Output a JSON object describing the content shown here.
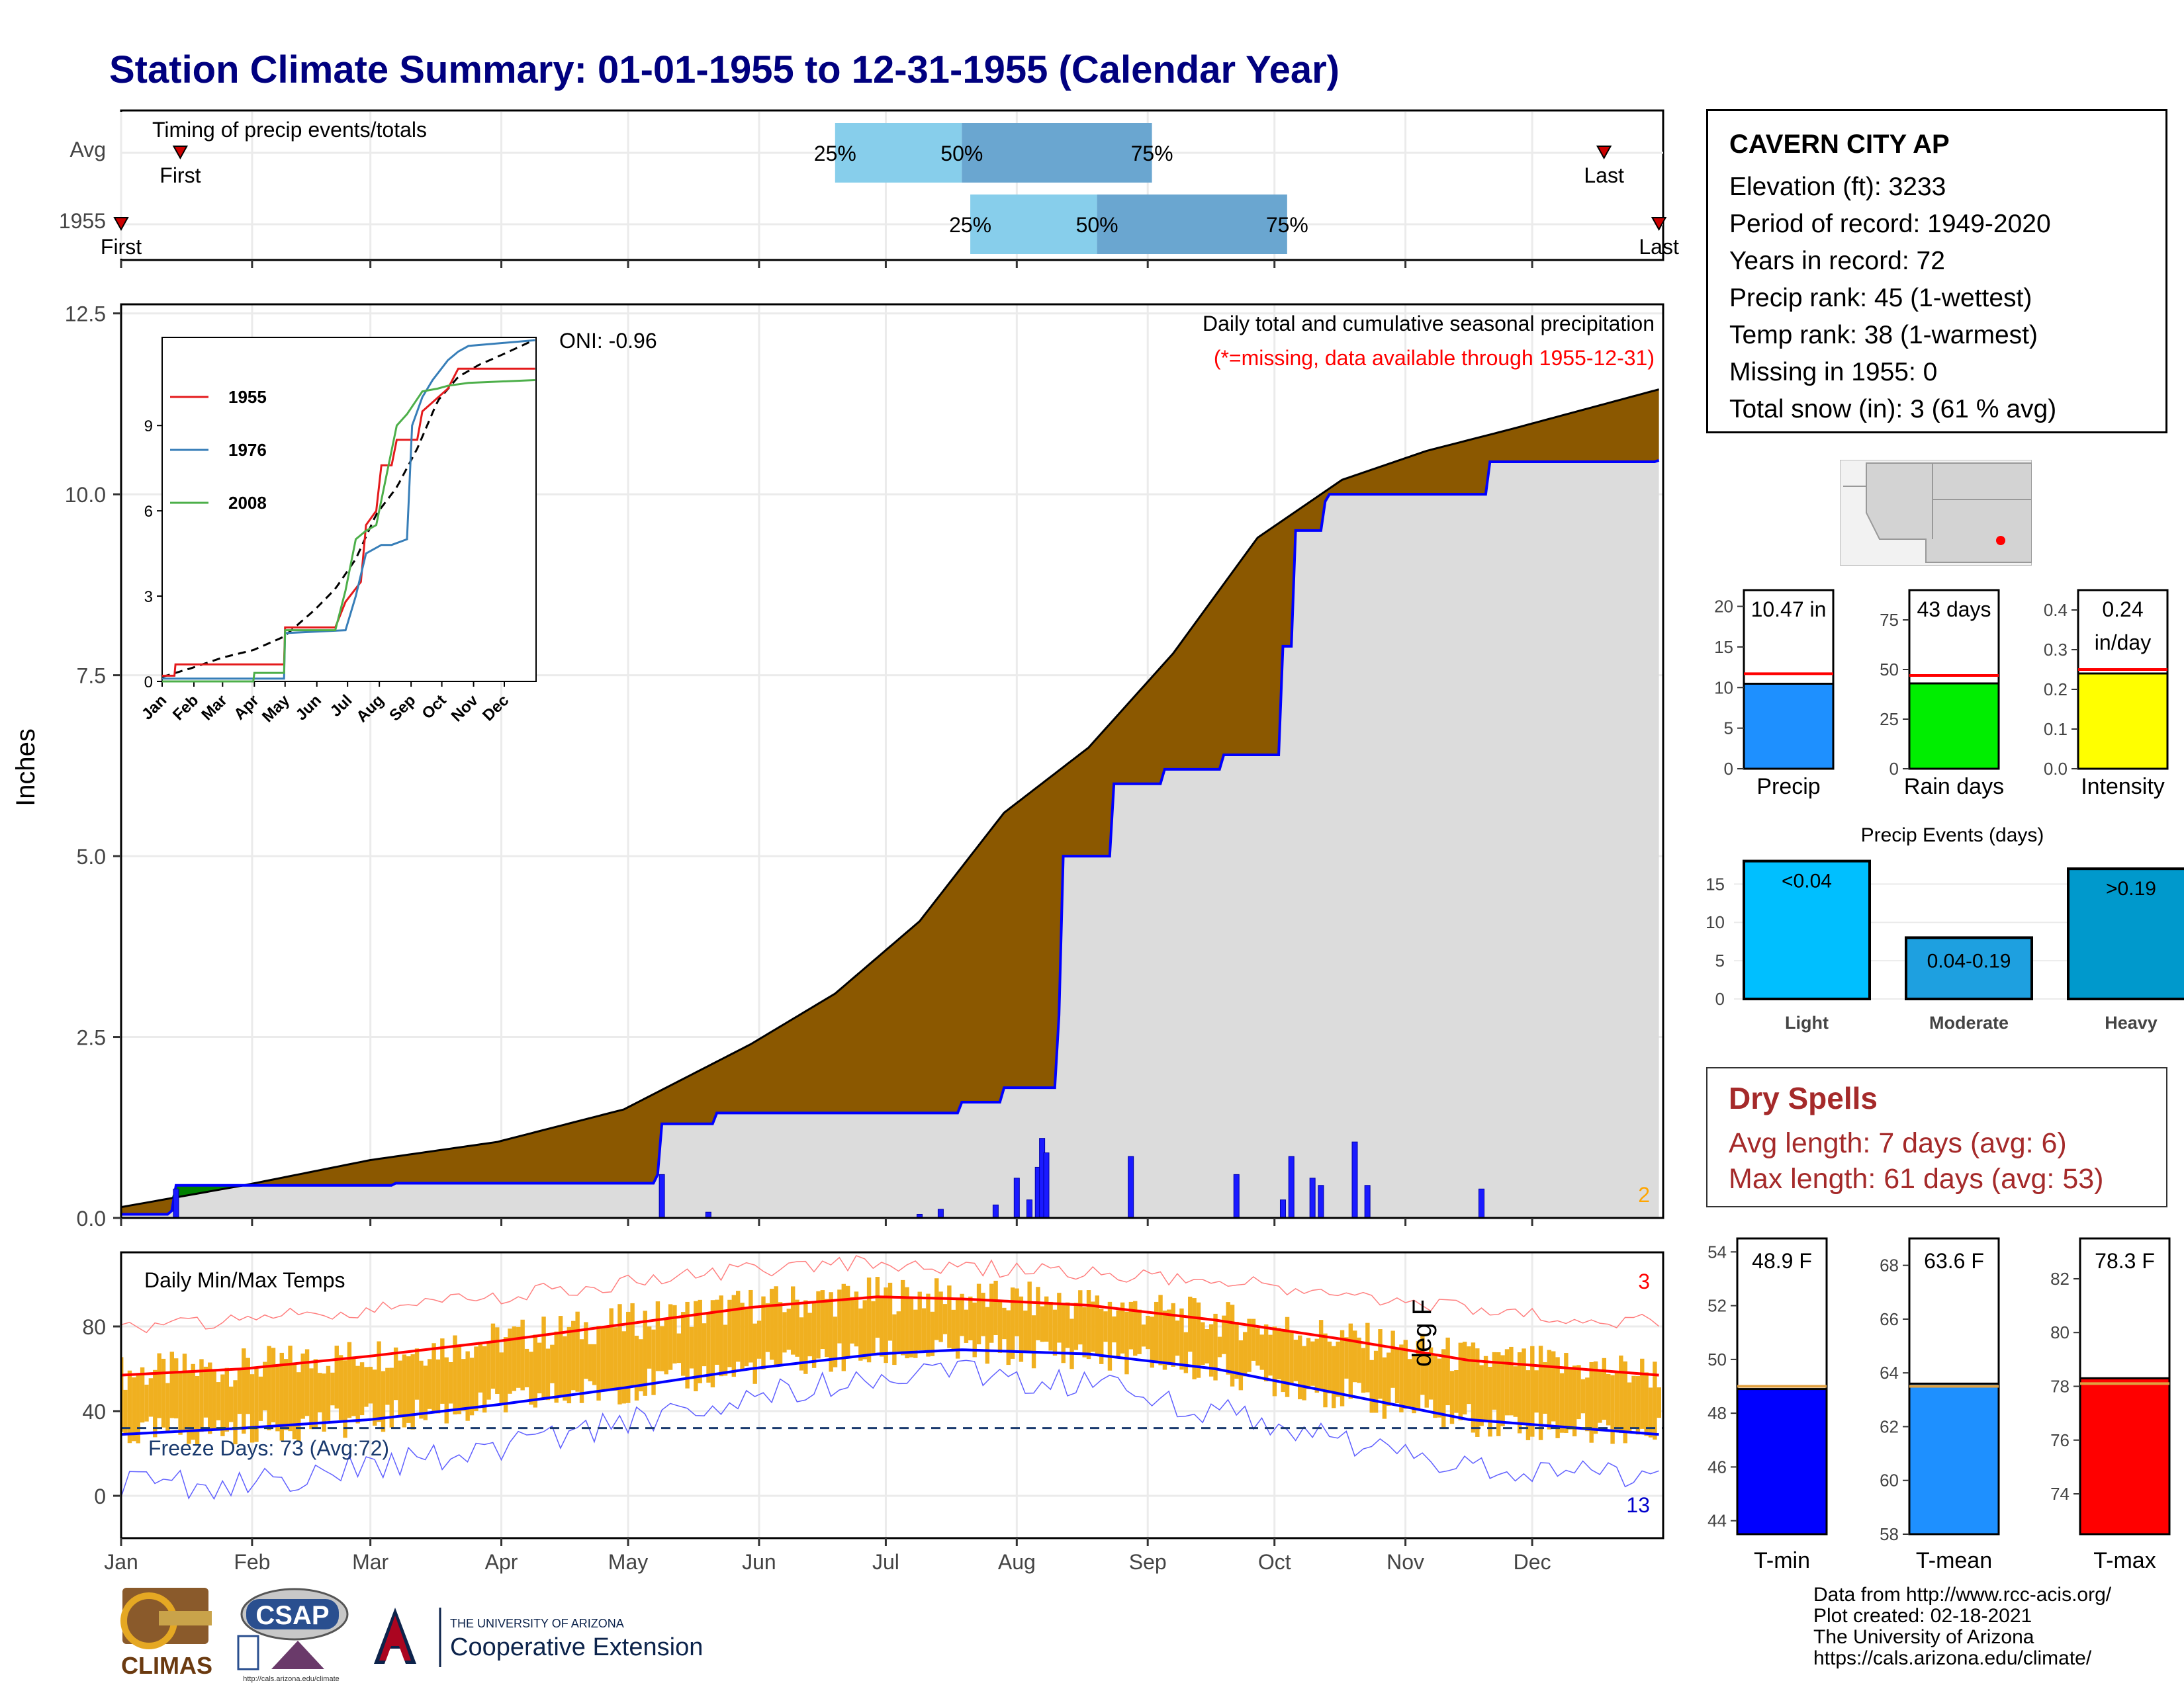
{
  "title": "Station Climate Summary: 01-01-1955 to 12-31-1955 (Calendar Year)",
  "colors": {
    "title": "#00007f",
    "q_light": "#87ceeb",
    "q_dark": "#6aa6d0",
    "deficit": "#8b5800",
    "surplus": "#008000",
    "normal_fill": "#dcdcdc",
    "obs_line": "#0000ff",
    "tmax": "#ff0000",
    "tmin": "#0000ff",
    "temp_bar": "#f0b020",
    "dryspell": "#a52a2a"
  },
  "timing": {
    "label": "Timing of precip events/totals",
    "rows": [
      "Avg",
      "1955"
    ],
    "avg": {
      "first_label": "First",
      "last_label": "Last",
      "p25": "25%",
      "p50": "50%",
      "p75": "75%",
      "first_day": 15,
      "last_day": 352,
      "q25": 170,
      "q50": 200,
      "q75": 245
    },
    "year": {
      "first_label": "First",
      "last_label": "Last",
      "p25": "25%",
      "p50": "50%",
      "p75": "75%",
      "first_day": 1,
      "last_day": 365,
      "q25": 202,
      "q50": 232,
      "q75": 277
    }
  },
  "precip_panel": {
    "ylabel": "Inches",
    "yticks": [
      "0.0",
      "2.5",
      "5.0",
      "7.5",
      "10.0",
      "12.5"
    ],
    "ylim": [
      0,
      12.6
    ],
    "annotation": "Daily total and cumulative seasonal precipitation",
    "missing_note": "(*=missing, data available through 1955-12-31)",
    "oni": "ONI: -0.96",
    "missing_count": "2"
  },
  "inset": {
    "yticks": [
      "0",
      "3",
      "6",
      "9"
    ],
    "xticks": [
      "Jan",
      "Feb",
      "Mar",
      "Apr",
      "May",
      "Jun",
      "Jul",
      "Aug",
      "Sep",
      "Oct",
      "Nov",
      "Dec"
    ],
    "legend": [
      {
        "name": "1955",
        "color": "#e41a1c"
      },
      {
        "name": "1976",
        "color": "#377eb8"
      },
      {
        "name": "2008",
        "color": "#4daf4a"
      }
    ]
  },
  "temp_panel": {
    "ylabel": "deg F",
    "label": "Daily Min/Max Temps",
    "yticks": [
      "0",
      "40",
      "80"
    ],
    "ylim": [
      -20,
      115
    ],
    "freeze": "Freeze Days: 73 (Avg:72)",
    "max_count": "3",
    "min_count": "13"
  },
  "months": [
    "Jan",
    "Feb",
    "Mar",
    "Apr",
    "May",
    "Jun",
    "Jul",
    "Aug",
    "Sep",
    "Oct",
    "Nov",
    "Dec"
  ],
  "station": {
    "name": "CAVERN CITY AP",
    "lines": [
      "Elevation (ft): 3233",
      "Period of record: 1949-2020",
      "Years in record: 72",
      "Precip rank: 45 (1-wettest)",
      "Temp rank: 38 (1-warmest)",
      "Missing in 1955: 0",
      "Total snow (in): 3 (61 % avg)"
    ]
  },
  "bar_precip": {
    "label": "10.47 in",
    "xlabel": "Precip",
    "value": 10.47,
    "avg": 11.7,
    "yticks": [
      "0",
      "5",
      "10",
      "15",
      "20"
    ],
    "ymax": 22
  },
  "bar_raindays": {
    "label": "43 days",
    "xlabel": "Rain days",
    "value": 43,
    "avg": 47,
    "yticks": [
      "0",
      "25",
      "50",
      "75"
    ],
    "ymax": 90
  },
  "bar_intensity": {
    "label1": "0.24",
    "label2": "in/day",
    "xlabel": "Intensity",
    "value": 0.24,
    "avg": 0.25,
    "yticks": [
      "0.0",
      "0.1",
      "0.2",
      "0.3",
      "0.4"
    ],
    "ymax": 0.45
  },
  "precip_events": {
    "title": "Precip Events (days)",
    "yticks": [
      "0",
      "5",
      "10",
      "15"
    ],
    "ymax": 19,
    "categories": [
      "Light",
      "Moderate",
      "Heavy"
    ],
    "labels": [
      "<0.04",
      "0.04-0.19",
      ">0.19"
    ],
    "values": [
      18,
      8,
      17
    ],
    "colors": [
      "#00bfff",
      "#1ea0e0",
      "#0099cc"
    ]
  },
  "dry_spells": {
    "title": "Dry Spells",
    "avg": "Avg length: 7 days (avg: 6)",
    "max": "Max length: 61 days (avg: 53)"
  },
  "tmin_bar": {
    "label": "48.9 F",
    "xlabel": "T-min",
    "value": 48.9,
    "avg": 49.0,
    "yticks": [
      "44",
      "46",
      "48",
      "50",
      "52",
      "54"
    ],
    "ylim": [
      43.5,
      54.5
    ],
    "color": "#0000ff"
  },
  "tmean_bar": {
    "label": "63.6 F",
    "xlabel": "T-mean",
    "value": 63.6,
    "avg": 63.5,
    "yticks": [
      "58",
      "60",
      "62",
      "64",
      "66",
      "68"
    ],
    "ylim": [
      58,
      69
    ],
    "color": "#1e90ff"
  },
  "tmax_bar": {
    "label": "78.3 F",
    "xlabel": "T-max",
    "value": 78.3,
    "avg": 78.1,
    "yticks": [
      "74",
      "76",
      "78",
      "80",
      "82"
    ],
    "ylim": [
      72.5,
      83.5
    ],
    "color": "#ff0000"
  },
  "footer": [
    "Data from http://www.rcc-acis.org/",
    "Plot created: 02-18-2021",
    "The University of Arizona",
    "https://cals.arizona.edu/climate/"
  ],
  "logos": {
    "climas": "CLIMAS",
    "csap": "CSAP",
    "csap_url": "http://cals.arizona.edu/climate",
    "ua_top": "THE UNIVERSITY OF ARIZONA",
    "ua_bottom": "Cooperative Extension"
  },
  "chart_data": [
    {
      "type": "area",
      "title": "Daily total and cumulative seasonal precipitation",
      "ylabel": "Inches",
      "x_unit": "day of year",
      "ylim": [
        0,
        12.6
      ],
      "series": [
        {
          "name": "normal cumulative",
          "x": [
            1,
            30,
            60,
            90,
            120,
            150,
            170,
            190,
            210,
            230,
            250,
            270,
            290,
            310,
            330,
            365
          ],
          "values": [
            0.15,
            0.45,
            0.8,
            1.05,
            1.5,
            2.4,
            3.1,
            4.1,
            5.6,
            6.5,
            7.8,
            9.4,
            10.2,
            10.6,
            10.9,
            11.45
          ]
        },
        {
          "name": "observed cumulative",
          "x": [
            1,
            13,
            14,
            65,
            66,
            128,
            129,
            142,
            200,
            210,
            223,
            224,
            236,
            248,
            262,
            276,
            279,
            286,
            287,
            324,
            325,
            365
          ],
          "values": [
            0.05,
            0.1,
            0.45,
            0.45,
            0.48,
            0.6,
            1.3,
            1.45,
            1.6,
            1.8,
            2.8,
            5.0,
            6.0,
            6.2,
            6.4,
            7.9,
            9.5,
            9.9,
            10.0,
            10.0,
            10.45,
            10.47
          ]
        }
      ]
    },
    {
      "type": "bar",
      "title": "Daily precipitation",
      "x_unit": "day of year",
      "x": [
        14,
        129,
        140,
        190,
        195,
        208,
        213,
        216,
        218,
        219,
        220,
        240,
        265,
        276,
        278,
        283,
        285,
        293,
        296,
        323
      ],
      "values": [
        0.4,
        0.6,
        0.08,
        0.05,
        0.12,
        0.18,
        0.55,
        0.25,
        0.7,
        1.1,
        0.9,
        0.85,
        0.6,
        0.25,
        0.85,
        0.55,
        0.45,
        1.05,
        0.45,
        0.4
      ]
    },
    {
      "type": "line",
      "title": "Daily Min/Max Temps",
      "ylabel": "deg F",
      "x_unit": "day of year",
      "ylim": [
        -20,
        115
      ],
      "series": [
        {
          "name": "normal max",
          "x": [
            1,
            30,
            60,
            90,
            120,
            150,
            180,
            200,
            230,
            260,
            290,
            320,
            365
          ],
          "values": [
            57,
            60,
            66,
            73,
            81,
            89,
            94,
            93,
            90,
            83,
            74,
            64,
            57
          ]
        },
        {
          "name": "normal min",
          "x": [
            1,
            30,
            60,
            90,
            120,
            150,
            180,
            200,
            230,
            260,
            290,
            320,
            365
          ],
          "values": [
            29,
            32,
            36,
            43,
            51,
            60,
            67,
            69,
            67,
            60,
            48,
            36,
            29
          ]
        },
        {
          "name": "record max",
          "x": [
            1,
            30,
            60,
            90,
            120,
            150,
            180,
            200,
            230,
            260,
            290,
            320,
            365
          ],
          "values": [
            80,
            84,
            88,
            94,
            101,
            107,
            110,
            108,
            105,
            102,
            95,
            88,
            82
          ]
        },
        {
          "name": "record min",
          "x": [
            1,
            30,
            60,
            90,
            120,
            150,
            180,
            200,
            230,
            260,
            290,
            320,
            365
          ],
          "values": [
            5,
            5,
            14,
            22,
            34,
            46,
            57,
            58,
            52,
            40,
            26,
            12,
            8
          ]
        }
      ]
    },
    {
      "type": "bar",
      "title": "Climate summary bars",
      "categories": [
        "Precip",
        "Rain days",
        "Intensity"
      ],
      "series": [
        {
          "values": [
            10.47,
            43,
            0.24
          ]
        }
      ]
    },
    {
      "type": "bar",
      "title": "Precip Events (days)",
      "categories": [
        "Light",
        "Moderate",
        "Heavy"
      ],
      "values": [
        18,
        8,
        17
      ]
    },
    {
      "type": "bar",
      "title": "Temperature summary",
      "categories": [
        "T-min",
        "T-mean",
        "T-max"
      ],
      "values": [
        48.9,
        63.6,
        78.3
      ]
    }
  ]
}
